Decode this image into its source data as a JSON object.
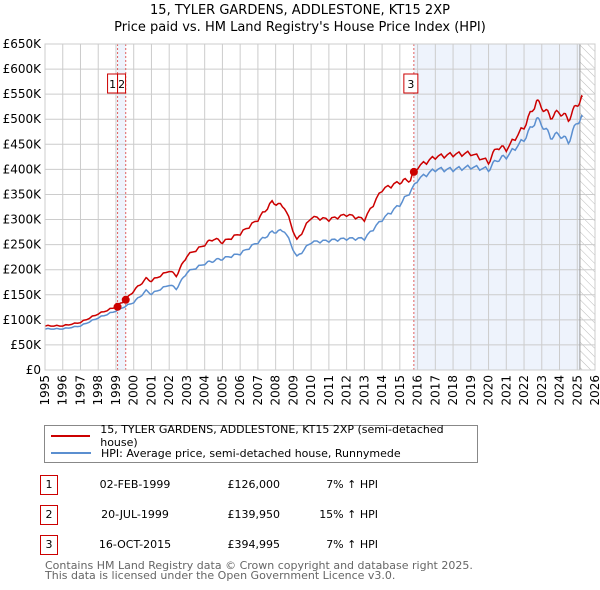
{
  "title": "15, TYLER GARDENS, ADDLESTONE, KT15 2XP",
  "subtitle": "Price paid vs. HM Land Registry's House Price Index (HPI)",
  "chart_data": {
    "type": "line",
    "xlim": [
      1995,
      2026
    ],
    "ylim": [
      0,
      650000
    ],
    "yticks": [
      0,
      50000,
      100000,
      150000,
      200000,
      250000,
      300000,
      350000,
      400000,
      450000,
      500000,
      550000,
      600000,
      650000
    ],
    "ytick_labels": [
      "£0",
      "£50K",
      "£100K",
      "£150K",
      "£200K",
      "£250K",
      "£300K",
      "£350K",
      "£400K",
      "£450K",
      "£500K",
      "£550K",
      "£600K",
      "£650K"
    ],
    "xticks": [
      1995,
      1996,
      1997,
      1998,
      1999,
      2000,
      2001,
      2002,
      2003,
      2004,
      2005,
      2006,
      2007,
      2008,
      2009,
      2010,
      2011,
      2012,
      2013,
      2014,
      2015,
      2016,
      2017,
      2018,
      2019,
      2020,
      2021,
      2022,
      2023,
      2024,
      2025,
      2026
    ],
    "grid": true,
    "series": [
      {
        "name": "15, TYLER GARDENS, ADDLESTONE, KT15 2XP (semi-detached house)",
        "color": "#cc0000",
        "x": [
          1995,
          1996,
          1997,
          1998,
          1999,
          1999.55,
          2000,
          2000.7,
          2001,
          2002,
          2002.4,
          2003,
          2004,
          2004.5,
          2005,
          2006,
          2007,
          2007.8,
          2008.5,
          2009.2,
          2010,
          2011,
          2012,
          2013,
          2014,
          2015,
          2015.6,
          2015.79,
          2016,
          2017,
          2018,
          2019,
          2020,
          2020.5,
          2021,
          2022,
          2022.7,
          2023,
          2023.5,
          2024,
          2024.5,
          2025,
          2025.3
        ],
        "y": [
          88000,
          88000,
          95000,
          112000,
          126000,
          139950,
          158000,
          182000,
          178000,
          198000,
          188000,
          228000,
          250000,
          262000,
          255000,
          272000,
          300000,
          335000,
          325000,
          258000,
          305000,
          300000,
          310000,
          300000,
          360000,
          375000,
          380000,
          394995,
          405000,
          425000,
          430000,
          432000,
          415000,
          445000,
          440000,
          485000,
          535000,
          525000,
          505000,
          515000,
          500000,
          530000,
          545000
        ]
      },
      {
        "name": "HPI: Average price, semi-detached house, Runnymede",
        "color": "#5b8fd0",
        "x": [
          1995,
          1996,
          1997,
          1998,
          1999,
          2000,
          2000.7,
          2001,
          2002,
          2002.4,
          2003,
          2004,
          2004.5,
          2005,
          2006,
          2007,
          2007.8,
          2008.5,
          2009.2,
          2010,
          2011,
          2012,
          2013,
          2014,
          2015,
          2015.79,
          2016,
          2017,
          2018,
          2019,
          2020,
          2020.5,
          2021,
          2022,
          2022.7,
          2023,
          2023.5,
          2024,
          2024.5,
          2025,
          2025.3
        ],
        "y": [
          82000,
          82000,
          88000,
          104000,
          118000,
          135000,
          158000,
          152000,
          170000,
          162000,
          195000,
          212000,
          218000,
          222000,
          232000,
          255000,
          275000,
          278000,
          225000,
          255000,
          258000,
          262000,
          262000,
          300000,
          330000,
          365000,
          380000,
          400000,
          400000,
          405000,
          400000,
          420000,
          425000,
          460000,
          500000,
          490000,
          465000,
          470000,
          455000,
          495000,
          505000
        ]
      }
    ],
    "sales": [
      {
        "label": "1",
        "x": 1999.09,
        "y": 126000
      },
      {
        "label": "2",
        "x": 1999.55,
        "y": 139950
      },
      {
        "label": "3",
        "x": 2015.79,
        "y": 394995
      }
    ],
    "data_end_x": 2025.15
  },
  "legend": [
    {
      "label": "15, TYLER GARDENS, ADDLESTONE, KT15 2XP (semi-detached house)",
      "color": "#cc0000"
    },
    {
      "label": "HPI: Average price, semi-detached house, Runnymede",
      "color": "#5b8fd0"
    }
  ],
  "transactions": [
    {
      "num": "1",
      "date": "02-FEB-1999",
      "price": "£126,000",
      "hpi": "7% ↑ HPI"
    },
    {
      "num": "2",
      "date": "20-JUL-1999",
      "price": "£139,950",
      "hpi": "15% ↑ HPI"
    },
    {
      "num": "3",
      "date": "16-OCT-2015",
      "price": "£394,995",
      "hpi": "7% ↑ HPI"
    }
  ],
  "footer": {
    "line1": "Contains HM Land Registry data © Crown copyright and database right 2025.",
    "line2": "This data is licensed under the Open Government Licence v3.0."
  }
}
